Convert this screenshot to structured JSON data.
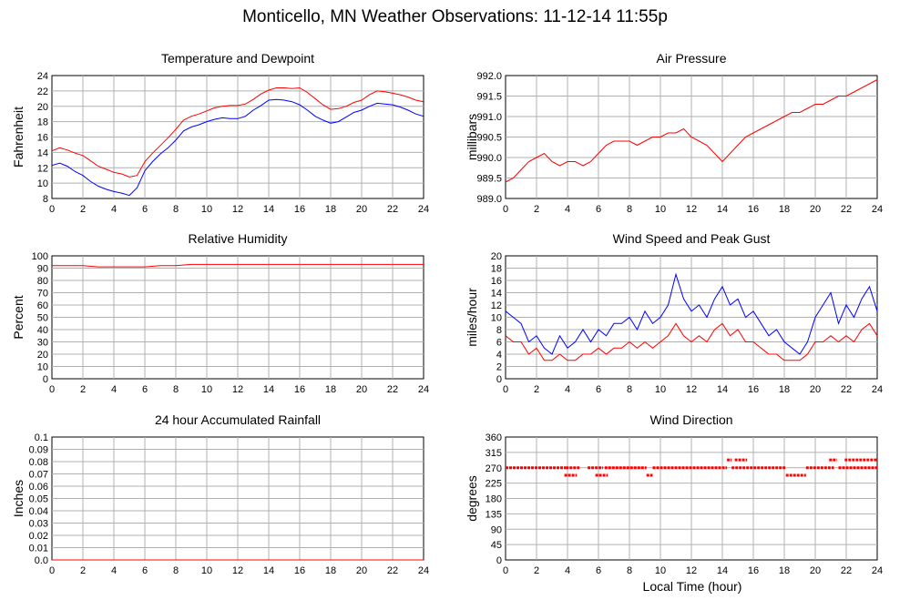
{
  "page": {
    "title": "Monticello, MN Weather Observations: 11-12-14 11:55p",
    "bottom_xlabel": "Local Time (hour)"
  },
  "colors": {
    "red": "#ff0000",
    "blue": "#0000ff",
    "grid": "#b0b0b0"
  },
  "chart_data": [
    {
      "id": "temperature",
      "type": "line",
      "title": "Temperature and Dewpoint",
      "xlabel": "",
      "ylabel": "Fahrenheit",
      "xlim": [
        0,
        24
      ],
      "ylim": [
        8,
        24
      ],
      "xticks": [
        0,
        2,
        4,
        6,
        8,
        10,
        12,
        14,
        16,
        18,
        20,
        22,
        24
      ],
      "yticks": [
        8,
        10,
        12,
        14,
        16,
        18,
        20,
        22,
        24
      ],
      "ytick_labels": [
        "8",
        "10",
        "12",
        "14",
        "16",
        "18",
        "20",
        "22",
        "24"
      ],
      "grid": true,
      "series": [
        {
          "color": "#ff0000",
          "x": [
            0,
            0.5,
            1,
            1.5,
            2,
            2.5,
            3,
            3.5,
            4,
            4.5,
            5,
            5.5,
            6,
            6.5,
            7,
            7.5,
            8,
            8.5,
            9,
            9.5,
            10,
            10.5,
            11,
            11.5,
            12,
            12.5,
            13,
            13.5,
            14,
            14.5,
            15,
            15.5,
            16,
            16.5,
            17,
            17.5,
            18,
            18.5,
            19,
            19.5,
            20,
            20.5,
            21,
            21.5,
            22,
            22.5,
            23,
            23.5,
            24
          ],
          "y": [
            14.2,
            14.6,
            14.3,
            13.9,
            13.6,
            12.9,
            12.2,
            11.8,
            11.4,
            11.2,
            10.8,
            11.0,
            12.8,
            13.9,
            14.9,
            15.9,
            17.0,
            18.2,
            18.7,
            19.0,
            19.4,
            19.8,
            20.0,
            20.1,
            20.1,
            20.3,
            20.9,
            21.6,
            22.1,
            22.4,
            22.4,
            22.3,
            22.4,
            21.8,
            21.0,
            20.2,
            19.6,
            19.7,
            20.0,
            20.5,
            20.8,
            21.5,
            22.0,
            21.9,
            21.7,
            21.5,
            21.2,
            20.8,
            20.6
          ]
        },
        {
          "color": "#0000ff",
          "x": [
            0,
            0.5,
            1,
            1.5,
            2,
            2.5,
            3,
            3.5,
            4,
            4.5,
            5,
            5.5,
            6,
            6.5,
            7,
            7.5,
            8,
            8.5,
            9,
            9.5,
            10,
            10.5,
            11,
            11.5,
            12,
            12.5,
            13,
            13.5,
            14,
            14.5,
            15,
            15.5,
            16,
            16.5,
            17,
            17.5,
            18,
            18.5,
            19,
            19.5,
            20,
            20.5,
            21,
            21.5,
            22,
            22.5,
            23,
            23.5,
            24
          ],
          "y": [
            12.3,
            12.6,
            12.2,
            11.5,
            11.0,
            10.2,
            9.6,
            9.2,
            8.9,
            8.7,
            8.4,
            9.4,
            11.6,
            12.8,
            13.8,
            14.6,
            15.6,
            16.8,
            17.3,
            17.6,
            18.0,
            18.3,
            18.5,
            18.4,
            18.4,
            18.7,
            19.5,
            20.1,
            20.8,
            20.9,
            20.8,
            20.6,
            20.2,
            19.5,
            18.7,
            18.2,
            17.8,
            18.0,
            18.6,
            19.2,
            19.5,
            20.0,
            20.4,
            20.3,
            20.2,
            19.9,
            19.5,
            19.0,
            18.7
          ]
        }
      ]
    },
    {
      "id": "pressure",
      "type": "line",
      "title": "Air Pressure",
      "xlabel": "",
      "ylabel": "millibars",
      "xlim": [
        0,
        24
      ],
      "ylim": [
        989.0,
        992.0
      ],
      "xticks": [
        0,
        2,
        4,
        6,
        8,
        10,
        12,
        14,
        16,
        18,
        20,
        22,
        24
      ],
      "yticks": [
        989.0,
        989.5,
        990.0,
        990.5,
        991.0,
        991.5,
        992.0
      ],
      "ytick_labels": [
        "989.0",
        "989.5",
        "990.0",
        "990.5",
        "991.0",
        "991.5",
        "992.0"
      ],
      "grid": true,
      "series": [
        {
          "color": "#ff0000",
          "x": [
            0,
            0.5,
            1,
            1.5,
            2,
            2.5,
            3,
            3.5,
            4,
            4.5,
            5,
            5.5,
            6,
            6.5,
            7,
            7.5,
            8,
            8.5,
            9,
            9.5,
            10,
            10.5,
            11,
            11.5,
            12,
            12.5,
            13,
            13.5,
            14,
            14.5,
            15,
            15.5,
            16,
            16.5,
            17,
            17.5,
            18,
            18.5,
            19,
            19.5,
            20,
            20.5,
            21,
            21.5,
            22,
            22.5,
            23,
            23.5,
            24
          ],
          "y": [
            989.4,
            989.5,
            989.7,
            989.9,
            990.0,
            990.1,
            989.9,
            989.8,
            989.9,
            989.9,
            989.8,
            989.9,
            990.1,
            990.3,
            990.4,
            990.4,
            990.4,
            990.3,
            990.4,
            990.5,
            990.5,
            990.6,
            990.6,
            990.7,
            990.5,
            990.4,
            990.3,
            990.1,
            989.9,
            990.1,
            990.3,
            990.5,
            990.6,
            990.7,
            990.8,
            990.9,
            991.0,
            991.1,
            991.1,
            991.2,
            991.3,
            991.3,
            991.4,
            991.5,
            991.5,
            991.6,
            991.7,
            991.8,
            991.9
          ]
        }
      ]
    },
    {
      "id": "humidity",
      "type": "line",
      "title": "Relative Humidity",
      "xlabel": "",
      "ylabel": "Percent",
      "xlim": [
        0,
        24
      ],
      "ylim": [
        0,
        100
      ],
      "xticks": [
        0,
        2,
        4,
        6,
        8,
        10,
        12,
        14,
        16,
        18,
        20,
        22,
        24
      ],
      "yticks": [
        0,
        10,
        20,
        30,
        40,
        50,
        60,
        70,
        80,
        90,
        100
      ],
      "ytick_labels": [
        "0",
        "10",
        "20",
        "30",
        "40",
        "50",
        "60",
        "70",
        "80",
        "90",
        "100"
      ],
      "grid": true,
      "series": [
        {
          "color": "#ff0000",
          "x": [
            0,
            1,
            2,
            3,
            4,
            5,
            6,
            7,
            8,
            9,
            10,
            11,
            12,
            13,
            14,
            15,
            16,
            17,
            18,
            19,
            20,
            21,
            22,
            23,
            24
          ],
          "y": [
            92,
            92,
            92,
            91,
            91,
            91,
            91,
            92,
            92,
            93,
            93,
            93,
            93,
            93,
            93,
            93,
            93,
            93,
            93,
            93,
            93,
            93,
            93,
            93,
            93
          ]
        }
      ]
    },
    {
      "id": "wind",
      "type": "line",
      "title": "Wind Speed and Peak Gust",
      "xlabel": "",
      "ylabel": "miles/hour",
      "xlim": [
        0,
        24
      ],
      "ylim": [
        0,
        20
      ],
      "xticks": [
        0,
        2,
        4,
        6,
        8,
        10,
        12,
        14,
        16,
        18,
        20,
        22,
        24
      ],
      "yticks": [
        0,
        2,
        4,
        6,
        8,
        10,
        12,
        14,
        16,
        18,
        20
      ],
      "ytick_labels": [
        "0",
        "2",
        "4",
        "6",
        "8",
        "10",
        "12",
        "14",
        "16",
        "18",
        "20"
      ],
      "grid": true,
      "series": [
        {
          "color": "#0000ff",
          "x": [
            0,
            0.5,
            1,
            1.5,
            2,
            2.5,
            3,
            3.5,
            4,
            4.5,
            5,
            5.5,
            6,
            6.5,
            7,
            7.5,
            8,
            8.5,
            9,
            9.5,
            10,
            10.5,
            11,
            11.5,
            12,
            12.5,
            13,
            13.5,
            14,
            14.5,
            15,
            15.5,
            16,
            16.5,
            17,
            17.5,
            18,
            18.5,
            19,
            19.5,
            20,
            20.5,
            21,
            21.5,
            22,
            22.5,
            23,
            23.5,
            24
          ],
          "y": [
            11,
            10,
            9,
            6,
            7,
            5,
            4,
            7,
            5,
            6,
            8,
            6,
            8,
            7,
            9,
            9,
            10,
            8,
            11,
            9,
            10,
            12,
            17,
            13,
            11,
            12,
            10,
            13,
            15,
            12,
            13,
            10,
            11,
            9,
            7,
            8,
            6,
            5,
            4,
            6,
            10,
            12,
            14,
            9,
            12,
            10,
            13,
            15,
            11
          ]
        },
        {
          "color": "#ff0000",
          "x": [
            0,
            0.5,
            1,
            1.5,
            2,
            2.5,
            3,
            3.5,
            4,
            4.5,
            5,
            5.5,
            6,
            6.5,
            7,
            7.5,
            8,
            8.5,
            9,
            9.5,
            10,
            10.5,
            11,
            11.5,
            12,
            12.5,
            13,
            13.5,
            14,
            14.5,
            15,
            15.5,
            16,
            16.5,
            17,
            17.5,
            18,
            18.5,
            19,
            19.5,
            20,
            20.5,
            21,
            21.5,
            22,
            22.5,
            23,
            23.5,
            24
          ],
          "y": [
            7,
            6,
            6,
            4,
            5,
            3,
            3,
            4,
            3,
            3,
            4,
            4,
            5,
            4,
            5,
            5,
            6,
            5,
            6,
            5,
            6,
            7,
            9,
            7,
            6,
            7,
            6,
            8,
            9,
            7,
            8,
            6,
            6,
            5,
            4,
            4,
            3,
            3,
            3,
            4,
            6,
            6,
            7,
            6,
            7,
            6,
            8,
            9,
            7
          ]
        }
      ]
    },
    {
      "id": "rainfall",
      "type": "line",
      "title": "24 hour Accumulated Rainfall",
      "xlabel": "",
      "ylabel": "Inches",
      "xlim": [
        0,
        24
      ],
      "ylim": [
        0,
        0.1
      ],
      "xticks": [
        0,
        2,
        4,
        6,
        8,
        10,
        12,
        14,
        16,
        18,
        20,
        22,
        24
      ],
      "yticks": [
        0,
        0.01,
        0.02,
        0.03,
        0.04,
        0.05,
        0.06,
        0.07,
        0.08,
        0.09,
        0.1
      ],
      "ytick_labels": [
        "0.0",
        "0.01",
        "0.02",
        "0.03",
        "0.04",
        "0.05",
        "0.06",
        "0.07",
        "0.08",
        "0.09",
        "0.1"
      ],
      "grid": true,
      "series": [
        {
          "color": "#ff0000",
          "x": [
            0,
            24
          ],
          "y": [
            0,
            0
          ]
        }
      ]
    },
    {
      "id": "direction",
      "type": "scatter",
      "title": "Wind Direction",
      "xlabel": "Local Time (hour)",
      "ylabel": "degrees",
      "xlim": [
        0,
        24
      ],
      "ylim": [
        0,
        360
      ],
      "xticks": [
        0,
        2,
        4,
        6,
        8,
        10,
        12,
        14,
        16,
        18,
        20,
        22,
        24
      ],
      "yticks": [
        0,
        45,
        90,
        135,
        180,
        225,
        270,
        315,
        360
      ],
      "ytick_labels": [
        "0",
        "45",
        "90",
        "135",
        "180",
        "225",
        "270",
        "315",
        "360"
      ],
      "grid": true,
      "series": [
        {
          "color": "#ff0000",
          "segments": [
            {
              "from": 0.0,
              "to": 3.9,
              "y": 270
            },
            {
              "from": 3.9,
              "to": 4.8,
              "y": 270
            },
            {
              "from": 5.3,
              "to": 6.3,
              "y": 270
            },
            {
              "from": 6.4,
              "to": 9.1,
              "y": 270
            },
            {
              "from": 9.5,
              "to": 14.3,
              "y": 270
            },
            {
              "from": 14.6,
              "to": 18.1,
              "y": 270
            },
            {
              "from": 19.4,
              "to": 21.2,
              "y": 270
            },
            {
              "from": 21.5,
              "to": 24.0,
              "y": 270
            },
            {
              "from": 3.8,
              "to": 4.6,
              "y": 248
            },
            {
              "from": 5.8,
              "to": 6.6,
              "y": 248
            },
            {
              "from": 9.1,
              "to": 9.5,
              "y": 248
            },
            {
              "from": 18.1,
              "to": 19.4,
              "y": 248
            },
            {
              "from": 14.3,
              "to": 14.6,
              "y": 293
            },
            {
              "from": 14.8,
              "to": 15.6,
              "y": 293
            },
            {
              "from": 20.9,
              "to": 21.4,
              "y": 293
            },
            {
              "from": 21.9,
              "to": 24.0,
              "y": 293
            }
          ]
        }
      ]
    }
  ]
}
